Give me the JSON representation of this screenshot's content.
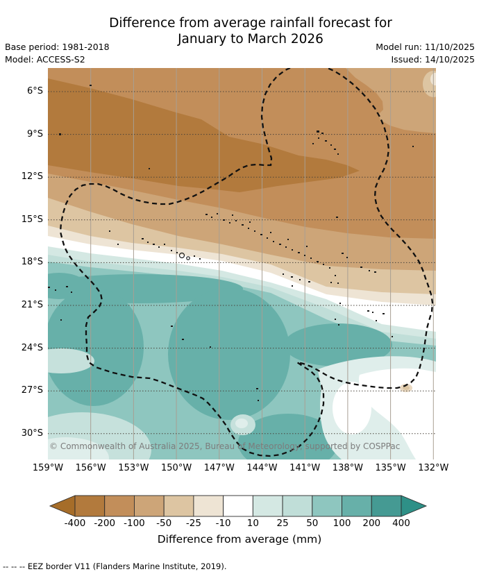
{
  "header": {
    "title_line1": "Difference from average rainfall forecast for",
    "title_line2": "January to March 2026",
    "base_period": "Base period: 1981-2018",
    "model": "Model: ACCESS-S2",
    "model_run": "Model run: 11/10/2025",
    "issued": "Issued: 14/10/2025"
  },
  "map": {
    "lat_labels": [
      "6°S",
      "9°S",
      "12°S",
      "15°S",
      "18°S",
      "21°S",
      "24°S",
      "27°S",
      "30°S"
    ],
    "lon_labels": [
      "159°W",
      "156°W",
      "153°W",
      "150°W",
      "147°W",
      "144°W",
      "141°W",
      "138°W",
      "135°W",
      "132°W"
    ],
    "attribution": "© Commonwealth of Australia 2025, Bureau of Meteorology, supported by COSPPac",
    "border_style": "dashed",
    "border_name": "EEZ border"
  },
  "colorbar": {
    "title": "Difference from average (mm)",
    "tick_labels": [
      "-400",
      "-200",
      "-100",
      "-50",
      "-25",
      "-10",
      "10",
      "25",
      "50",
      "100",
      "200",
      "400"
    ],
    "segment_colors": [
      "#b27a3d",
      "#c28e5a",
      "#cda578",
      "#ddc5a2",
      "#eee4d4",
      "#ffffff",
      "#d4e8e3",
      "#c0ded8",
      "#8ec6bf",
      "#67b0a9",
      "#459a93"
    ],
    "arrow_left_color": "#a66d29",
    "arrow_right_color": "#2e9087"
  },
  "footnote": "-- -- -- EEZ border V11 (Flanders Marine Institute, 2019).",
  "chart_data": {
    "type": "heatmap",
    "subtype": "filled-contour-map",
    "title": "Difference from average rainfall forecast for January to March 2026",
    "xlabel_ticks": [
      "159°W",
      "156°W",
      "153°W",
      "150°W",
      "147°W",
      "144°W",
      "141°W",
      "138°W",
      "135°W",
      "132°W"
    ],
    "ylabel_ticks": [
      "6°S",
      "9°S",
      "12°S",
      "15°S",
      "18°S",
      "21°S",
      "24°S",
      "27°S",
      "30°S"
    ],
    "colorbar_label": "Difference from average (mm)",
    "colorbar_levels": [
      -400,
      -200,
      -100,
      -50,
      -25,
      -10,
      10,
      25,
      50,
      100,
      200,
      400
    ],
    "summary": "Negative anomalies (browns, drier than average, below -200 mm in a band near 6S-13S) across the north; positive anomalies (teals, up to 100-200 mm) south of about 18S; near-zero white band between, and near-zero pocket in the southeast corner."
  }
}
